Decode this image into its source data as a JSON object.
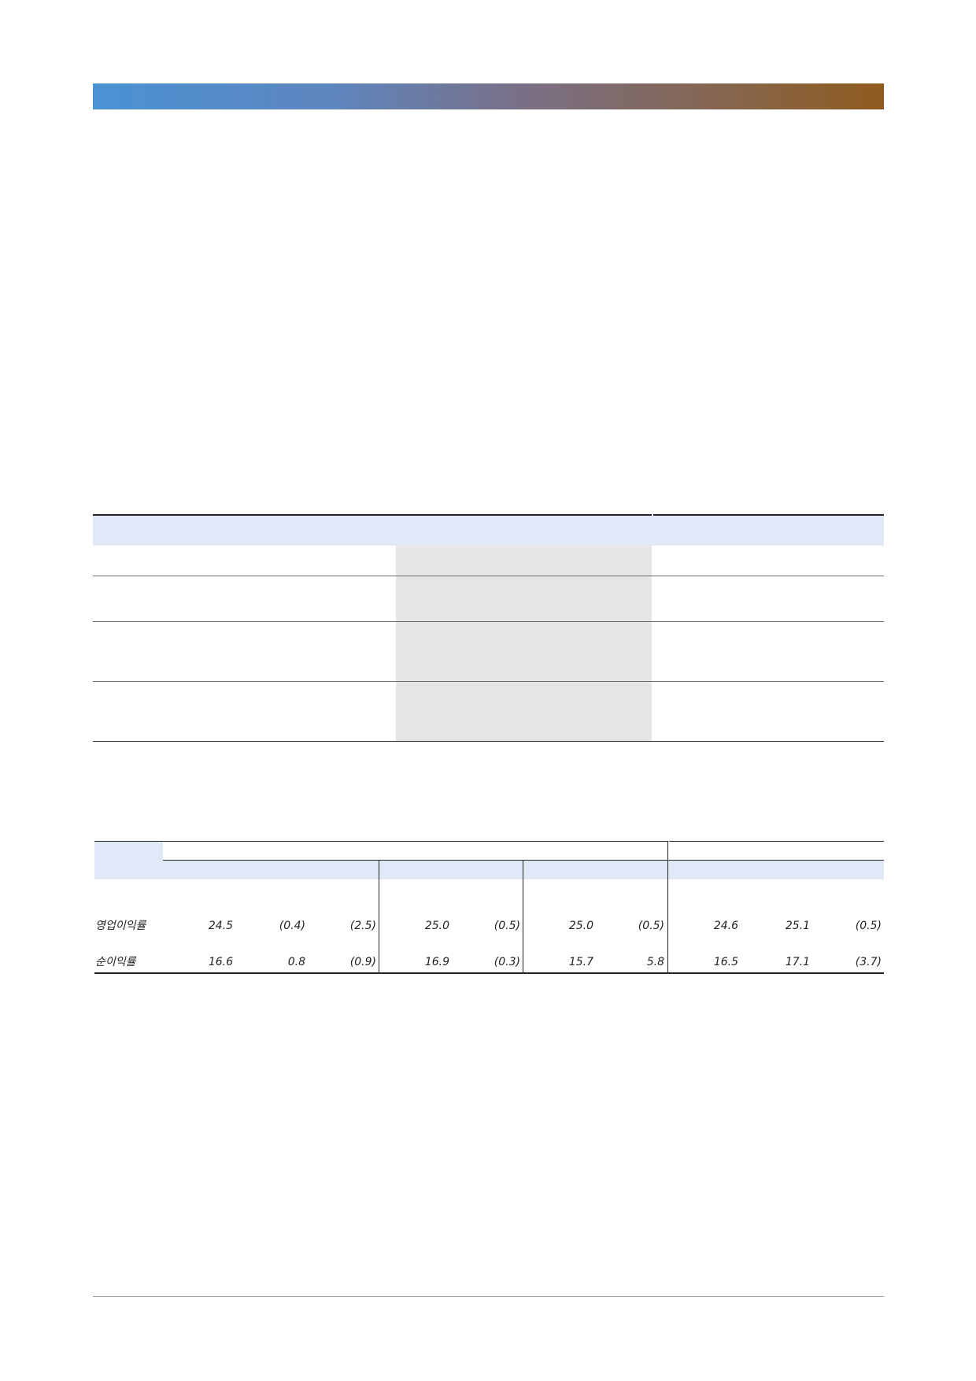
{
  "table2": {
    "rows": [
      {
        "label": "영업이익률",
        "values": [
          "24.5",
          "(0.4)",
          "(2.5)",
          "25.0",
          "(0.5)",
          "25.0",
          "(0.5)",
          "24.6",
          "25.1",
          "(0.5)"
        ]
      },
      {
        "label": "순이익률",
        "values": [
          "16.6",
          "0.8",
          "(0.9)",
          "16.9",
          "(0.3)",
          "15.7",
          "5.8",
          "16.5",
          "17.1",
          "(3.7)"
        ]
      }
    ]
  },
  "colors": {
    "header_fill": "#e1e9f8",
    "shaded_column_fill": "#e6e6e6",
    "banner_start": "#4a92d4",
    "banner_end": "#8f5b1e"
  }
}
